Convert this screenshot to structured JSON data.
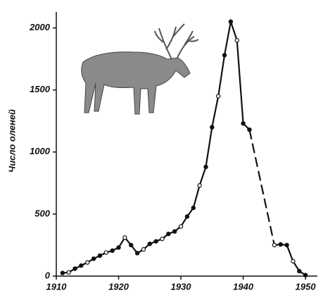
{
  "chart_data": {
    "type": "line",
    "y_label": "Число оленей",
    "x": [
      1911,
      1912,
      1913,
      1914,
      1915,
      1916,
      1917,
      1918,
      1919,
      1920,
      1921,
      1922,
      1923,
      1924,
      1925,
      1926,
      1927,
      1928,
      1929,
      1930,
      1931,
      1932,
      1933,
      1934,
      1935,
      1936,
      1937,
      1938,
      1939,
      1940,
      1941,
      1942,
      1943,
      1944,
      1945,
      1946,
      1947,
      1948,
      1949,
      1950
    ],
    "values": [
      25,
      30,
      60,
      85,
      110,
      140,
      165,
      190,
      205,
      230,
      310,
      250,
      185,
      215,
      260,
      280,
      300,
      340,
      360,
      400,
      480,
      550,
      730,
      880,
      1200,
      1450,
      1780,
      2050,
      1900,
      1230,
      1180,
      null,
      null,
      null,
      250,
      255,
      250,
      120,
      40,
      8
    ],
    "color": "#111",
    "dashed_gaps": true,
    "xlim": [
      1910,
      1951
    ],
    "xticks": [
      1910,
      1920,
      1930,
      1940,
      1950
    ],
    "ylim": [
      0,
      2100
    ],
    "yticks": [
      0,
      500,
      1000,
      1500,
      2000
    ]
  }
}
